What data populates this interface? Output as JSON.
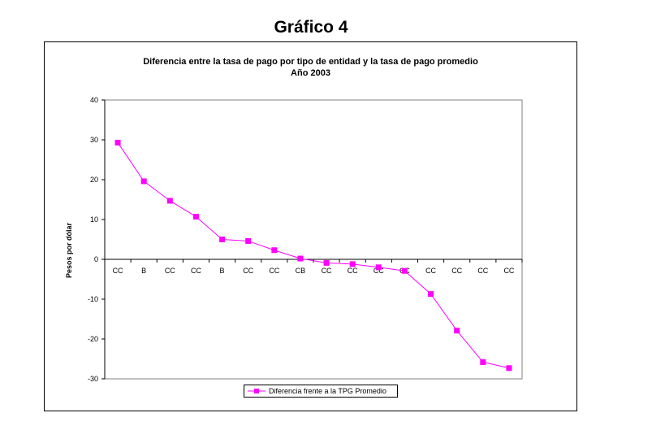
{
  "heading": "Gráfico 4",
  "chart_data": {
    "type": "line",
    "title": "Diferencia entre la tasa de pago por tipo de entidad y la tasa de pago promedio",
    "subtitle": "Año 2003",
    "ylabel": "Pesos por dólar",
    "xlabel": "",
    "ylim": [
      -30,
      40
    ],
    "yticks": [
      40,
      30,
      20,
      10,
      0,
      -10,
      -20,
      -30
    ],
    "grid": false,
    "legend_position": "bottom",
    "categories": [
      "CC",
      "B",
      "CC",
      "CC",
      "B",
      "CC",
      "CC",
      "CB",
      "CC",
      "CC",
      "CC",
      "CC",
      "CC",
      "CC",
      "CC",
      "CC"
    ],
    "series": [
      {
        "name": "Diferencia frente a la TPG Promedio",
        "color": "#ff00ff",
        "values": [
          29.3,
          19.6,
          14.7,
          10.7,
          5.0,
          4.6,
          2.3,
          0.2,
          -0.9,
          -1.2,
          -2.0,
          -2.9,
          -8.7,
          -17.9,
          -25.8,
          -27.3
        ]
      }
    ]
  }
}
